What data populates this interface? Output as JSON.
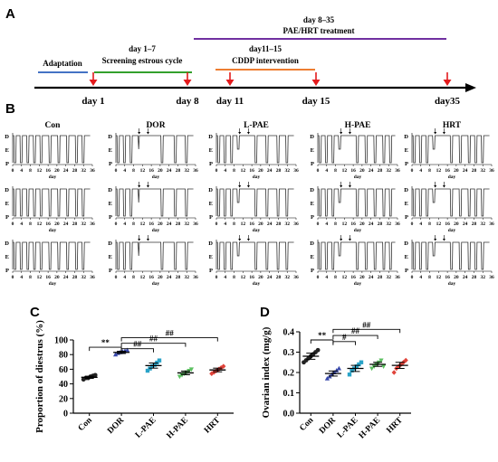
{
  "panel_a": {
    "letter": "A",
    "phase_adaptation": "Adaptation",
    "phase_screen_days": "day 1–7",
    "phase_screen_label": "Screening estrous cycle",
    "phase_treat_days": "day 8–35",
    "phase_treat_label": "PAE/HRT treatment",
    "phase_cddp_days": "day11–15",
    "phase_cddp_label": "CDDP intervention",
    "timepoints": [
      {
        "label": "day 1",
        "day": 1
      },
      {
        "label": "day 8",
        "day": 8
      },
      {
        "label": "day 11",
        "day": 11
      },
      {
        "label": "day 15",
        "day": 15
      },
      {
        "label": "day35",
        "day": 35
      }
    ],
    "colors": {
      "adaptation": "#4472c4",
      "screening": "#33a02c",
      "treatment": "#7030a0",
      "cddp": "#ed7d31",
      "arrow": "#e31a1c"
    }
  },
  "panel_b": {
    "letter": "B",
    "groups": [
      "Con",
      "DOR",
      "L-PAE",
      "H-PAE",
      "HRT"
    ],
    "y_labels": [
      "D",
      "E",
      "P"
    ],
    "x_ticks": [
      "0",
      "4",
      "8",
      "12",
      "16",
      "20",
      "24",
      "28",
      "32",
      "36"
    ],
    "x_label": "day"
  },
  "chart_data": [
    {
      "type": "scatter",
      "panel": "C",
      "ylabel": "Proportion of diestrus (%)",
      "ylim": [
        0,
        100
      ],
      "yticks": [
        "0",
        "20",
        "40",
        "60",
        "80",
        "100"
      ],
      "categories": [
        "Con",
        "DOR",
        "L-PAE",
        "H-PAE",
        "HRT"
      ],
      "colors": [
        "#222222",
        "#3949ab",
        "#29a3c8",
        "#5cc060",
        "#e0433a"
      ],
      "means": [
        49,
        83,
        65,
        55,
        59
      ],
      "points": [
        [
          46,
          48,
          48,
          50,
          51,
          52
        ],
        [
          80,
          82,
          83,
          84,
          85,
          86
        ],
        [
          58,
          61,
          64,
          66,
          69,
          72
        ],
        [
          50,
          52,
          54,
          56,
          58,
          60
        ],
        [
          54,
          56,
          58,
          60,
          62,
          64
        ]
      ],
      "annotations": [
        {
          "text": "**",
          "from": 0,
          "to": 1
        },
        {
          "text": "##",
          "from": 1,
          "to": 2
        },
        {
          "text": "##",
          "from": 1,
          "to": 3
        },
        {
          "text": "##",
          "from": 1,
          "to": 4
        }
      ]
    },
    {
      "type": "scatter",
      "panel": "D",
      "ylabel": "Ovarian index (mg/g)",
      "ylim": [
        0,
        0.4
      ],
      "yticks": [
        "0.0",
        "0.1",
        "0.2",
        "0.3",
        "0.4"
      ],
      "categories": [
        "Con",
        "DOR",
        "L-PAE",
        "H-PAE",
        "HRT"
      ],
      "colors": [
        "#222222",
        "#3949ab",
        "#29a3c8",
        "#5cc060",
        "#e0433a"
      ],
      "means": [
        0.28,
        0.195,
        0.22,
        0.24,
        0.235
      ],
      "points": [
        [
          0.25,
          0.26,
          0.27,
          0.28,
          0.29,
          0.3,
          0.31
        ],
        [
          0.17,
          0.18,
          0.19,
          0.2,
          0.21,
          0.22
        ],
        [
          0.19,
          0.21,
          0.22,
          0.23,
          0.24,
          0.25
        ],
        [
          0.22,
          0.23,
          0.24,
          0.25,
          0.26,
          0.23
        ],
        [
          0.2,
          0.22,
          0.23,
          0.24,
          0.25,
          0.26
        ]
      ],
      "annotations": [
        {
          "text": "**",
          "from": 0,
          "to": 1
        },
        {
          "text": "#",
          "from": 1,
          "to": 2
        },
        {
          "text": "##",
          "from": 1,
          "to": 3
        },
        {
          "text": "##",
          "from": 1,
          "to": 4
        }
      ]
    }
  ],
  "panel_c_letter": "C",
  "panel_d_letter": "D"
}
